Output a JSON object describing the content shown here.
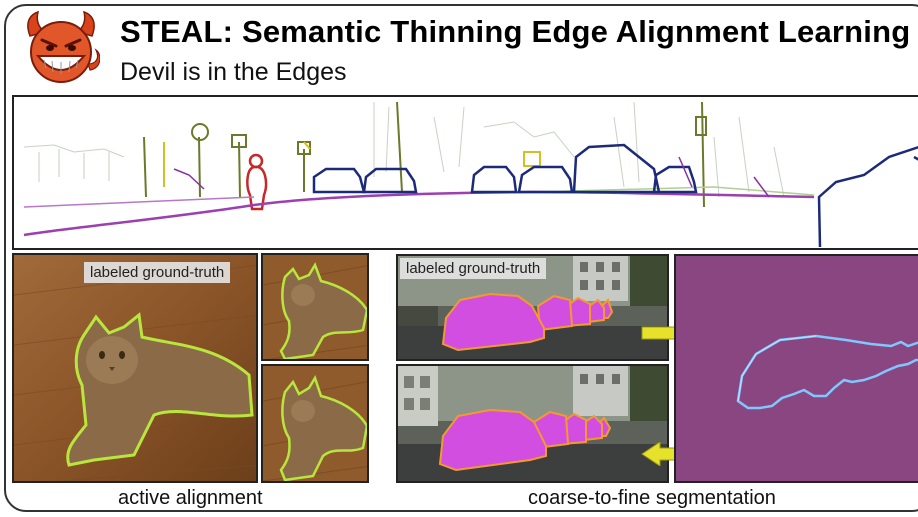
{
  "header": {
    "title": "STEAL: Semantic Thinning Edge Alignment Learning",
    "subtitle": "Devil is in the Edges",
    "logo_icon": "devil-face-icon"
  },
  "panels": {
    "alignment": {
      "tag": "labeled ground-truth",
      "caption": "active alignment"
    },
    "segmentation": {
      "tag": "labeled ground-truth",
      "caption": "coarse-to-fine segmentation"
    }
  },
  "colors": {
    "edge_purple": "#6a2fa0",
    "edge_navy": "#1d2a7a",
    "edge_magenta": "#c14fbf",
    "mask_magenta": "#d24ee0",
    "mask_outline": "#f29a2e",
    "cat_outline": "#b9e63c",
    "seg_background": "#8a4680",
    "arrow_yellow": "#e6e12a"
  }
}
